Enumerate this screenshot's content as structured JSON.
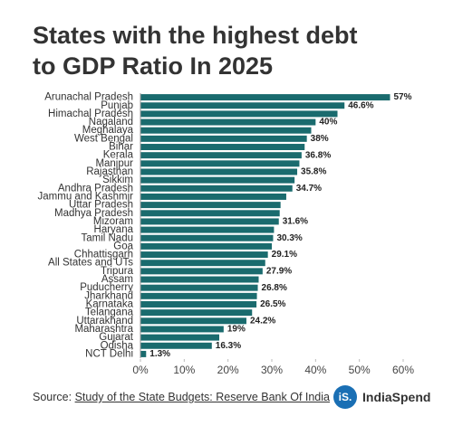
{
  "chart_data": {
    "type": "bar",
    "orientation": "horizontal",
    "title": "States with the highest debt to GDP Ratio In 2025",
    "categories": [
      "Arunachal Pradesh",
      "Punjab",
      "Himachal Pradesh",
      "Nagaland",
      "Meghalaya",
      "West Bengal",
      "Bihar",
      "Kerala",
      "Manipur",
      "Rajasthan",
      "Sikkim",
      "Andhra Pradesh",
      "Jammu and Kashmir",
      "Uttar Pradesh",
      "Madhya Pradesh",
      "Mizoram",
      "Haryana",
      "Tamil Nadu",
      "Goa",
      "Chhattisgarh",
      "All States and UTs",
      "Tripura",
      "Assam",
      "Puducherry",
      "Jharkhand",
      "Karnataka",
      "Telangana",
      "Uttarakhand",
      "Maharashtra",
      "Gujarat",
      "Odisha",
      "NCT Delhi"
    ],
    "values": [
      57,
      46.6,
      45,
      40,
      39,
      38,
      37.5,
      36.8,
      36.3,
      35.8,
      35.2,
      34.7,
      33.3,
      32,
      31.8,
      31.6,
      30.5,
      30.3,
      30,
      29.1,
      28.5,
      27.9,
      27,
      26.8,
      26.6,
      26.5,
      25.5,
      24.2,
      19,
      18,
      16.3,
      1.3
    ],
    "value_labels": [
      "57%",
      "46.6%",
      null,
      "40%",
      null,
      "38%",
      null,
      "36.8%",
      null,
      "35.8%",
      null,
      "34.7%",
      null,
      null,
      null,
      "31.6%",
      null,
      "30.3%",
      null,
      "29.1%",
      null,
      "27.9%",
      null,
      "26.8%",
      null,
      "26.5%",
      null,
      "24.2%",
      "19%",
      null,
      "16.3%",
      "1.3%"
    ],
    "color": "#1a6b6e",
    "xlim": [
      0,
      60
    ],
    "xticks": [
      {
        "value": 0,
        "label": "0%"
      },
      {
        "value": 10,
        "label": "10%"
      },
      {
        "value": 20,
        "label": "20%"
      },
      {
        "value": 30,
        "label": "30%"
      },
      {
        "value": 40,
        "label": "40%"
      },
      {
        "value": 50,
        "label": "50%"
      },
      {
        "value": 60,
        "label": "60%"
      }
    ],
    "grid": false
  },
  "footer": {
    "source_label": "Source:",
    "source": "Study of the State Budgets: Reserve Bank Of India",
    "logo": "iS.",
    "brand": "IndiaSpend"
  }
}
